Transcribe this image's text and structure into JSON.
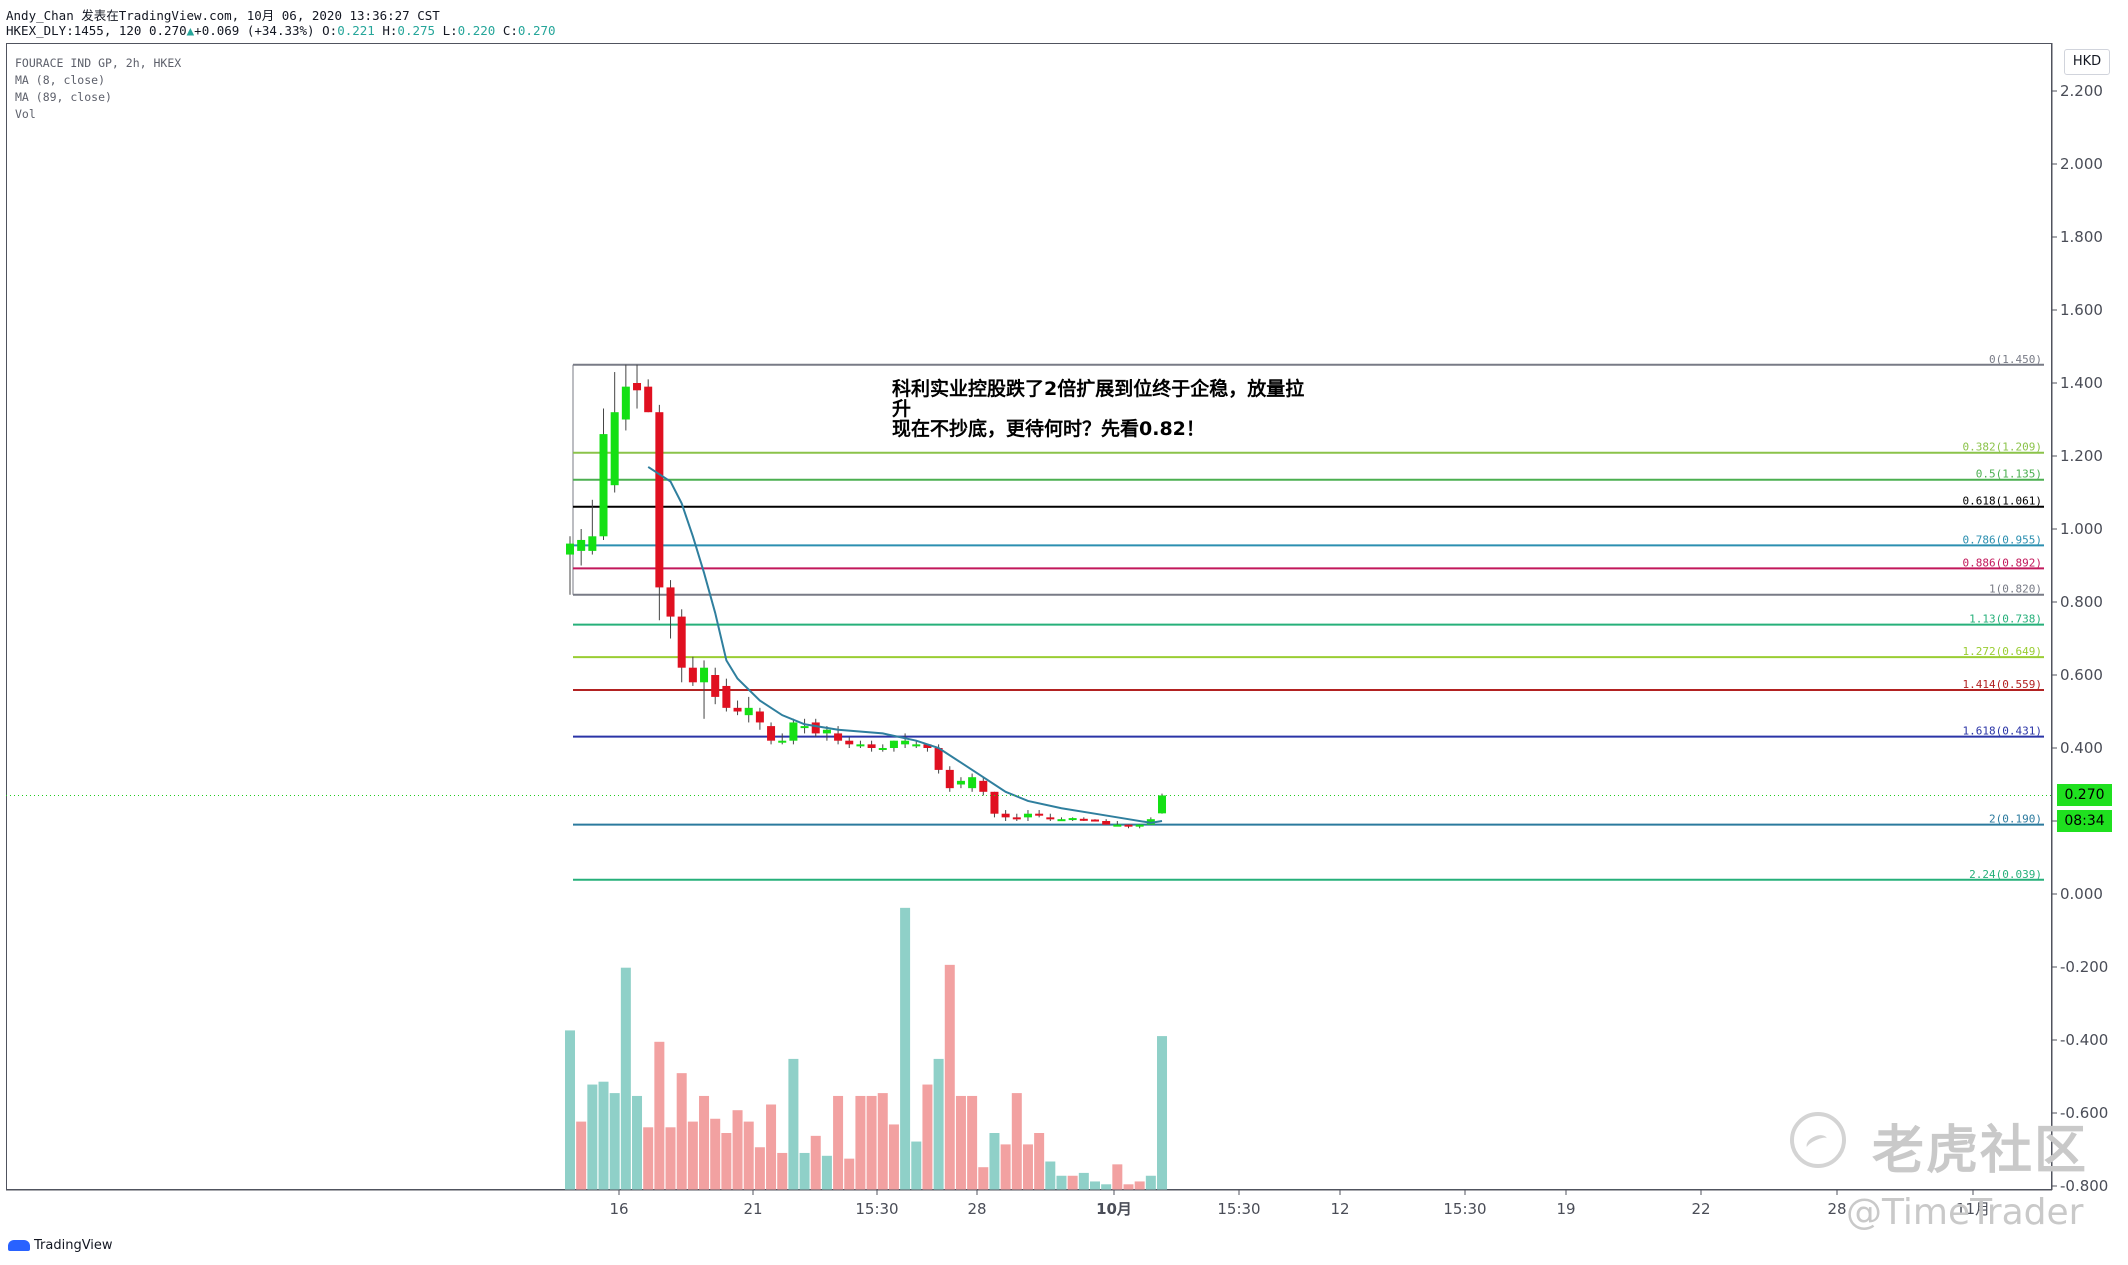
{
  "header": {
    "line1": "Andy_Chan 发表在TradingView.com, 10月 06, 2020 13:36:27 CST",
    "symbol": "HKEX_DLY:1455, 120",
    "last": "0.270",
    "change": "+0.069 (+34.33%)",
    "o_label": "O:",
    "o": "0.221",
    "h_label": "H:",
    "h": "0.275",
    "l_label": "L:",
    "l": "0.220",
    "c_label": "C:",
    "c": "0.270"
  },
  "legend": {
    "title": "FOURACE IND GP, 2h, HKEX",
    "ma8": "MA (8, close)",
    "ma89": "MA (89, close)",
    "vol": "Vol"
  },
  "currency": "HKD",
  "annotation": {
    "line1": "科利实业控股跌了2倍扩展到位终于企稳，放量拉",
    "line2": "升",
    "line3": "现在不抄底，更待何时？先看0.82！"
  },
  "price_label": "0.270",
  "countdown_label": "08:34",
  "watermark": {
    "text": "老虎社区",
    "handle": "@TimeTrader",
    "logo_icon": "tiger-logo-icon"
  },
  "footer": {
    "brand": "TradingView",
    "icon": "tradingview-logo-icon"
  },
  "colors": {
    "up": "#14e014",
    "down": "#e01020",
    "vol_up": "#8fd0c8",
    "vol_down": "#f2a1a1",
    "ma": "#2f7f9e",
    "price_badge": "#1fe01f"
  },
  "chart_data": {
    "type": "candlestick",
    "y_ticks": [
      "2.200",
      "2.000",
      "1.800",
      "1.600",
      "1.400",
      "1.200",
      "1.000",
      "0.800",
      "0.600",
      "0.400",
      "0.200",
      "0.000",
      "-0.200",
      "-0.400",
      "-0.600",
      "-0.800"
    ],
    "x_ticks": [
      "16",
      "21",
      "15:30",
      "28",
      "10月",
      "15:30",
      "12",
      "15:30",
      "19",
      "22",
      "28",
      "11月"
    ],
    "ylim": [
      -0.8,
      2.27
    ],
    "fib_levels": [
      {
        "label": "0(1.450)",
        "value": 1.45,
        "color": "#787b86"
      },
      {
        "label": "0.382(1.209)",
        "value": 1.209,
        "color": "#8bc34a"
      },
      {
        "label": "0.5(1.135)",
        "value": 1.135,
        "color": "#4caf50"
      },
      {
        "label": "0.618(1.061)",
        "value": 1.061,
        "color": "#000000"
      },
      {
        "label": "0.786(0.955)",
        "value": 0.955,
        "color": "#2b8fb0"
      },
      {
        "label": "0.886(0.892)",
        "value": 0.892,
        "color": "#c2185b"
      },
      {
        "label": "1(0.820)",
        "value": 0.82,
        "color": "#787b86"
      },
      {
        "label": "1.13(0.738)",
        "value": 0.738,
        "color": "#26b07a"
      },
      {
        "label": "1.272(0.649)",
        "value": 0.649,
        "color": "#9acd32"
      },
      {
        "label": "1.414(0.559)",
        "value": 0.559,
        "color": "#b22222"
      },
      {
        "label": "1.618(0.431)",
        "value": 0.431,
        "color": "#2a34a6"
      },
      {
        "label": "2(0.190)",
        "value": 0.19,
        "color": "#2b7a9e"
      },
      {
        "label": "2.24(0.039)",
        "value": 0.039,
        "color": "#26b07a"
      }
    ],
    "candles": [
      {
        "o": 0.93,
        "h": 0.98,
        "l": 0.82,
        "c": 0.96
      },
      {
        "o": 0.94,
        "h": 1.0,
        "l": 0.9,
        "c": 0.97
      },
      {
        "o": 0.94,
        "h": 1.08,
        "l": 0.93,
        "c": 0.98
      },
      {
        "o": 0.98,
        "h": 1.33,
        "l": 0.97,
        "c": 1.26
      },
      {
        "o": 1.12,
        "h": 1.43,
        "l": 1.1,
        "c": 1.32
      },
      {
        "o": 1.3,
        "h": 1.45,
        "l": 1.27,
        "c": 1.39
      },
      {
        "o": 1.4,
        "h": 1.45,
        "l": 1.33,
        "c": 1.38
      },
      {
        "o": 1.39,
        "h": 1.41,
        "l": 1.32,
        "c": 1.32
      },
      {
        "o": 1.32,
        "h": 1.34,
        "l": 0.75,
        "c": 0.84
      },
      {
        "o": 0.84,
        "h": 0.86,
        "l": 0.7,
        "c": 0.76
      },
      {
        "o": 0.76,
        "h": 0.78,
        "l": 0.58,
        "c": 0.62
      },
      {
        "o": 0.62,
        "h": 0.65,
        "l": 0.57,
        "c": 0.58
      },
      {
        "o": 0.58,
        "h": 0.64,
        "l": 0.48,
        "c": 0.62
      },
      {
        "o": 0.6,
        "h": 0.62,
        "l": 0.52,
        "c": 0.54
      },
      {
        "o": 0.57,
        "h": 0.59,
        "l": 0.5,
        "c": 0.51
      },
      {
        "o": 0.51,
        "h": 0.53,
        "l": 0.49,
        "c": 0.5
      },
      {
        "o": 0.49,
        "h": 0.54,
        "l": 0.47,
        "c": 0.51
      },
      {
        "o": 0.5,
        "h": 0.51,
        "l": 0.45,
        "c": 0.47
      },
      {
        "o": 0.46,
        "h": 0.47,
        "l": 0.41,
        "c": 0.42
      },
      {
        "o": 0.42,
        "h": 0.44,
        "l": 0.41,
        "c": 0.42
      },
      {
        "o": 0.42,
        "h": 0.48,
        "l": 0.41,
        "c": 0.47
      },
      {
        "o": 0.46,
        "h": 0.48,
        "l": 0.44,
        "c": 0.46
      },
      {
        "o": 0.47,
        "h": 0.48,
        "l": 0.43,
        "c": 0.44
      },
      {
        "o": 0.44,
        "h": 0.46,
        "l": 0.42,
        "c": 0.45
      },
      {
        "o": 0.44,
        "h": 0.46,
        "l": 0.41,
        "c": 0.42
      },
      {
        "o": 0.42,
        "h": 0.43,
        "l": 0.4,
        "c": 0.41
      },
      {
        "o": 0.41,
        "h": 0.42,
        "l": 0.4,
        "c": 0.41
      },
      {
        "o": 0.41,
        "h": 0.42,
        "l": 0.39,
        "c": 0.4
      },
      {
        "o": 0.4,
        "h": 0.41,
        "l": 0.39,
        "c": 0.4
      },
      {
        "o": 0.4,
        "h": 0.42,
        "l": 0.39,
        "c": 0.42
      },
      {
        "o": 0.41,
        "h": 0.44,
        "l": 0.4,
        "c": 0.42
      },
      {
        "o": 0.41,
        "h": 0.42,
        "l": 0.4,
        "c": 0.41
      },
      {
        "o": 0.41,
        "h": 0.41,
        "l": 0.39,
        "c": 0.4
      },
      {
        "o": 0.4,
        "h": 0.41,
        "l": 0.33,
        "c": 0.34
      },
      {
        "o": 0.34,
        "h": 0.35,
        "l": 0.28,
        "c": 0.29
      },
      {
        "o": 0.3,
        "h": 0.32,
        "l": 0.29,
        "c": 0.31
      },
      {
        "o": 0.29,
        "h": 0.33,
        "l": 0.28,
        "c": 0.32
      },
      {
        "o": 0.31,
        "h": 0.32,
        "l": 0.27,
        "c": 0.28
      },
      {
        "o": 0.28,
        "h": 0.28,
        "l": 0.21,
        "c": 0.22
      },
      {
        "o": 0.22,
        "h": 0.23,
        "l": 0.2,
        "c": 0.21
      },
      {
        "o": 0.21,
        "h": 0.22,
        "l": 0.2,
        "c": 0.205
      },
      {
        "o": 0.21,
        "h": 0.23,
        "l": 0.2,
        "c": 0.22
      },
      {
        "o": 0.22,
        "h": 0.23,
        "l": 0.21,
        "c": 0.215
      },
      {
        "o": 0.21,
        "h": 0.22,
        "l": 0.2,
        "c": 0.205
      },
      {
        "o": 0.2,
        "h": 0.21,
        "l": 0.2,
        "c": 0.205
      },
      {
        "o": 0.205,
        "h": 0.21,
        "l": 0.2,
        "c": 0.208
      },
      {
        "o": 0.206,
        "h": 0.21,
        "l": 0.2,
        "c": 0.204
      },
      {
        "o": 0.204,
        "h": 0.205,
        "l": 0.2,
        "c": 0.203
      },
      {
        "o": 0.2,
        "h": 0.205,
        "l": 0.19,
        "c": 0.19
      },
      {
        "o": 0.19,
        "h": 0.2,
        "l": 0.185,
        "c": 0.19
      },
      {
        "o": 0.19,
        "h": 0.19,
        "l": 0.18,
        "c": 0.185
      },
      {
        "o": 0.185,
        "h": 0.19,
        "l": 0.18,
        "c": 0.19
      },
      {
        "o": 0.19,
        "h": 0.21,
        "l": 0.19,
        "c": 0.205
      },
      {
        "o": 0.221,
        "h": 0.275,
        "l": 0.22,
        "c": 0.27
      }
    ],
    "ma8": [
      {
        "i": 7,
        "v": 1.17
      },
      {
        "i": 9,
        "v": 1.13
      },
      {
        "i": 10,
        "v": 1.07
      },
      {
        "i": 11,
        "v": 0.98
      },
      {
        "i": 12,
        "v": 0.88
      },
      {
        "i": 13,
        "v": 0.77
      },
      {
        "i": 14,
        "v": 0.64
      },
      {
        "i": 15,
        "v": 0.59
      },
      {
        "i": 17,
        "v": 0.53
      },
      {
        "i": 19,
        "v": 0.49
      },
      {
        "i": 21,
        "v": 0.465
      },
      {
        "i": 24,
        "v": 0.45
      },
      {
        "i": 28,
        "v": 0.44
      },
      {
        "i": 31,
        "v": 0.42
      },
      {
        "i": 33,
        "v": 0.4
      },
      {
        "i": 35,
        "v": 0.36
      },
      {
        "i": 37,
        "v": 0.32
      },
      {
        "i": 39,
        "v": 0.28
      },
      {
        "i": 41,
        "v": 0.255
      },
      {
        "i": 44,
        "v": 0.235
      },
      {
        "i": 47,
        "v": 0.22
      },
      {
        "i": 50,
        "v": 0.205
      },
      {
        "i": 52,
        "v": 0.195
      },
      {
        "i": 53,
        "v": 0.2
      }
    ],
    "volume": [
      {
        "v": 0.56,
        "up": true
      },
      {
        "v": 0.24,
        "up": false
      },
      {
        "v": 0.37,
        "up": true
      },
      {
        "v": 0.38,
        "up": true
      },
      {
        "v": 0.34,
        "up": true
      },
      {
        "v": 0.78,
        "up": true
      },
      {
        "v": 0.33,
        "up": true
      },
      {
        "v": 0.22,
        "up": false
      },
      {
        "v": 0.52,
        "up": false
      },
      {
        "v": 0.22,
        "up": false
      },
      {
        "v": 0.41,
        "up": false
      },
      {
        "v": 0.24,
        "up": false
      },
      {
        "v": 0.33,
        "up": false
      },
      {
        "v": 0.25,
        "up": false
      },
      {
        "v": 0.2,
        "up": false
      },
      {
        "v": 0.28,
        "up": false
      },
      {
        "v": 0.24,
        "up": false
      },
      {
        "v": 0.15,
        "up": false
      },
      {
        "v": 0.3,
        "up": false
      },
      {
        "v": 0.13,
        "up": false
      },
      {
        "v": 0.46,
        "up": true
      },
      {
        "v": 0.13,
        "up": true
      },
      {
        "v": 0.19,
        "up": false
      },
      {
        "v": 0.12,
        "up": true
      },
      {
        "v": 0.33,
        "up": false
      },
      {
        "v": 0.11,
        "up": false
      },
      {
        "v": 0.33,
        "up": false
      },
      {
        "v": 0.33,
        "up": false
      },
      {
        "v": 0.34,
        "up": false
      },
      {
        "v": 0.23,
        "up": false
      },
      {
        "v": 0.99,
        "up": true
      },
      {
        "v": 0.17,
        "up": true
      },
      {
        "v": 0.37,
        "up": false
      },
      {
        "v": 0.46,
        "up": true
      },
      {
        "v": 0.79,
        "up": false
      },
      {
        "v": 0.33,
        "up": false
      },
      {
        "v": 0.33,
        "up": false
      },
      {
        "v": 0.08,
        "up": false
      },
      {
        "v": 0.2,
        "up": true
      },
      {
        "v": 0.16,
        "up": false
      },
      {
        "v": 0.34,
        "up": false
      },
      {
        "v": 0.16,
        "up": false
      },
      {
        "v": 0.2,
        "up": false
      },
      {
        "v": 0.1,
        "up": true
      },
      {
        "v": 0.05,
        "up": true
      },
      {
        "v": 0.05,
        "up": false
      },
      {
        "v": 0.06,
        "up": true
      },
      {
        "v": 0.03,
        "up": true
      },
      {
        "v": 0.02,
        "up": true
      },
      {
        "v": 0.09,
        "up": false
      },
      {
        "v": 0.02,
        "up": false
      },
      {
        "v": 0.03,
        "up": false
      },
      {
        "v": 0.05,
        "up": true
      },
      {
        "v": 0.54,
        "up": true
      }
    ]
  }
}
